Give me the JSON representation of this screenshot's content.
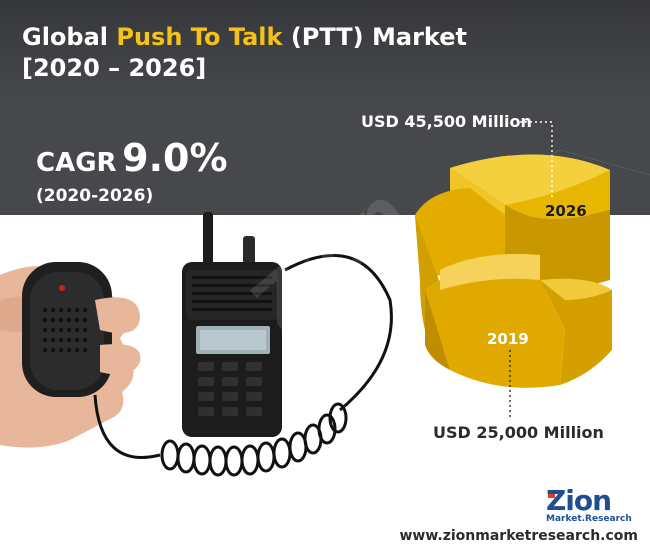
{
  "title": {
    "prefix": "Global ",
    "highlight": "Push To Talk",
    "suffix": " (PTT) Market",
    "line2": "[2020 – 2026]"
  },
  "cagr": {
    "label": "CAGR",
    "value": "9.0%",
    "period": "(2020-2026)"
  },
  "market": {
    "value_2026": "USD 45,500 Million",
    "value_2019": "USD 25,000 Million",
    "year_2026": "2026",
    "year_2019": "2019"
  },
  "brand": {
    "logo_main": "Zion",
    "logo_sub": "Market.Research",
    "url": "www.zionmarketresearch.com"
  },
  "colors": {
    "header_bg": "#46484b",
    "accent_yellow": "#f6c21a",
    "gold": "#d9a400",
    "text_white": "#ffffff",
    "text_dark": "#2b2b2b",
    "brand_blue": "#1e4f8f"
  },
  "icons": {
    "hand": "hand-holding-mic",
    "radio": "walkie-talkie"
  }
}
